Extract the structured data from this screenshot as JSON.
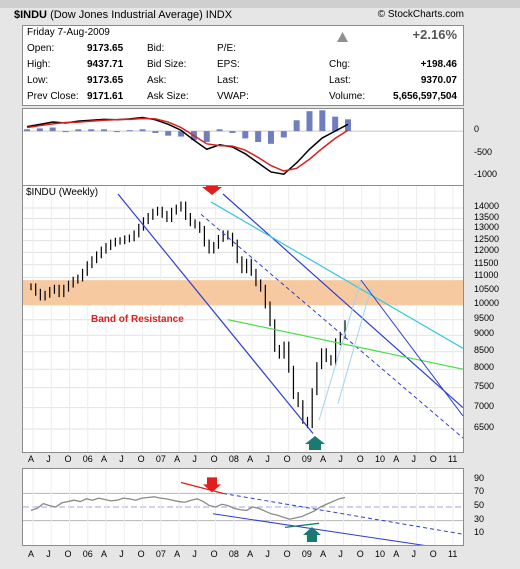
{
  "header": {
    "symbol": "$INDU",
    "name": "(Dow Jones Industrial Average)",
    "exchange": "INDX",
    "brand": "© StockCharts.com",
    "brand_glyph": "©"
  },
  "quote": {
    "date": "Friday  7-Aug-2009",
    "change_pct": "+2.16%",
    "change_arrow": "up",
    "col1": [
      {
        "label": "Open:",
        "value": "9173.65"
      },
      {
        "label": "High:",
        "value": "9437.71"
      },
      {
        "label": "Low:",
        "value": "9173.65"
      },
      {
        "label": "Prev Close:",
        "value": "9171.61"
      }
    ],
    "col2": [
      {
        "label": "Bid:"
      },
      {
        "label": "Bid Size:"
      },
      {
        "label": "Ask:"
      },
      {
        "label": "Ask Size:"
      }
    ],
    "col3": [
      {
        "label": "P/E:"
      },
      {
        "label": "EPS:"
      },
      {
        "label": "Last:"
      },
      {
        "label": "VWAP:"
      }
    ],
    "col4": [
      {
        "label": "Chg:",
        "value": "+198.46"
      },
      {
        "label": "Last:",
        "value": "9370.07"
      },
      {
        "label": "Volume:",
        "value": "5,656,597,504"
      }
    ]
  },
  "chart_data": [
    {
      "type": "line",
      "panel": "MACD",
      "y_ticks": [
        "0",
        "-500",
        "-1000"
      ],
      "ylim": [
        -1100,
        400
      ],
      "series": [
        {
          "color": "#000000",
          "values": [
            100,
            150,
            200,
            180,
            220,
            240,
            260,
            250,
            270,
            300,
            250,
            150,
            20,
            -200,
            -400,
            -300,
            -350,
            -500,
            -700,
            -900,
            -950,
            -700,
            -400,
            -150,
            0,
            150
          ]
        },
        {
          "color": "#d42020",
          "values": [
            80,
            120,
            160,
            190,
            200,
            220,
            240,
            255,
            260,
            280,
            270,
            200,
            80,
            -100,
            -280,
            -320,
            -330,
            -420,
            -580,
            -760,
            -880,
            -820,
            -620,
            -380,
            -160,
            20
          ]
        }
      ]
    },
    {
      "type": "line",
      "panel": "Price",
      "title": "$INDU (Weekly)",
      "scale": "log",
      "ylim": [
        6300,
        14700
      ],
      "y_ticks": [
        "14000",
        "13500",
        "13000",
        "12500",
        "12000",
        "11500",
        "11000",
        "10500",
        "10000",
        "9500",
        "9000",
        "8500",
        "8000",
        "7500",
        "7000",
        "6500"
      ],
      "x_ticks": [
        "A",
        "J",
        "O",
        "06",
        "A",
        "J",
        "O",
        "07",
        "A",
        "J",
        "O",
        "08",
        "A",
        "J",
        "O",
        "09",
        "A",
        "J",
        "O",
        "10",
        "A",
        "J",
        "O",
        "11"
      ],
      "annotations": [
        "Band of Resistance"
      ],
      "band": [
        10000,
        10900
      ],
      "bars_close": [
        10650,
        10450,
        10280,
        10380,
        10520,
        10600,
        10400,
        10600,
        10750,
        10900,
        10980,
        11200,
        11500,
        11700,
        11900,
        12100,
        12250,
        12400,
        12480,
        12500,
        12580,
        12620,
        12800,
        13100,
        13400,
        13600,
        13800,
        13900,
        13700,
        13500,
        13850,
        14000,
        14150,
        13600,
        13300,
        13200,
        13000,
        12400,
        12100,
        12300,
        12600,
        12800,
        12700,
        12400,
        11700,
        11300,
        11600,
        11200,
        10800,
        10600,
        10000,
        9400,
        8600,
        8400,
        8700,
        8000,
        7300,
        7100,
        6700,
        6600,
        7400,
        8100,
        8500,
        8300,
        8200,
        8800,
        9000,
        9370
      ]
    },
    {
      "type": "line",
      "panel": "RSI",
      "ylim": [
        0,
        100
      ],
      "y_ticks": [
        "90",
        "70",
        "50",
        "30",
        "10"
      ],
      "x_ticks": [
        "A",
        "J",
        "O",
        "06",
        "A",
        "J",
        "O",
        "07",
        "A",
        "J",
        "O",
        "08",
        "A",
        "J",
        "O",
        "09",
        "A",
        "J",
        "O",
        "10",
        "A",
        "J",
        "O",
        "11"
      ],
      "values": [
        45,
        48,
        55,
        52,
        50,
        56,
        58,
        60,
        58,
        62,
        60,
        63,
        61,
        59,
        60,
        63,
        62,
        60,
        63,
        64,
        65,
        63,
        62,
        60,
        58,
        57,
        60,
        62,
        58,
        52,
        50,
        54,
        52,
        48,
        46,
        45,
        50,
        48,
        44,
        40,
        38,
        35,
        32,
        34,
        36,
        40,
        44,
        50,
        54,
        58,
        62,
        64
      ]
    }
  ]
}
